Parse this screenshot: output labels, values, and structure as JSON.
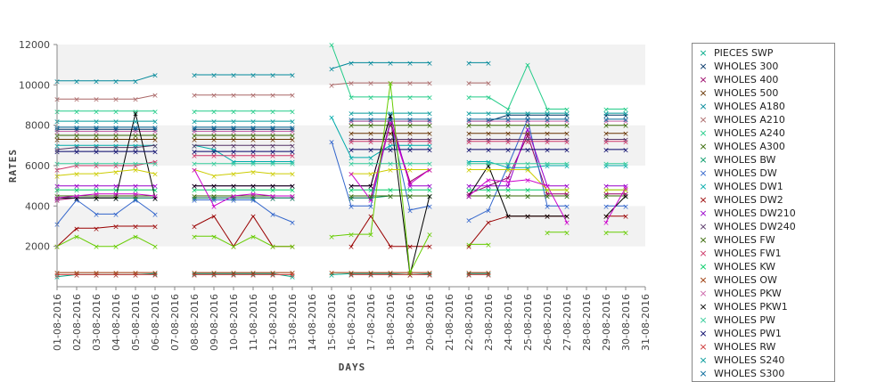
{
  "chart_data": {
    "type": "line",
    "title": "",
    "xlabel": "DAYS",
    "ylabel": "RATES",
    "ylim": [
      0,
      12000
    ],
    "yticks": [
      2000,
      4000,
      6000,
      8000,
      10000,
      12000
    ],
    "grid": "alternating horizontal bands",
    "legend_position": "right",
    "categories": [
      "01-08-2016",
      "02-08-2016",
      "03-08-2016",
      "04-08-2016",
      "05-08-2016",
      "06-08-2016",
      "07-08-2016",
      "08-08-2016",
      "09-08-2016",
      "10-08-2016",
      "11-08-2016",
      "12-08-2016",
      "13-08-2016",
      "14-08-2016",
      "15-08-2016",
      "16-08-2016",
      "17-08-2016",
      "18-08-2016",
      "19-08-2016",
      "20-08-2016",
      "21-08-2016",
      "22-08-2016",
      "23-08-2016",
      "24-08-2016",
      "25-08-2016",
      "26-08-2016",
      "27-08-2016",
      "28-08-2016",
      "29-08-2016",
      "30-08-2016",
      "31-08-2016"
    ],
    "series": [
      {
        "name": "PIECES SWP",
        "color": "#00aa88",
        "values": [
          500,
          600,
          600,
          600,
          600,
          650,
          null,
          650,
          650,
          650,
          650,
          650,
          500,
          null,
          600,
          650,
          650,
          650,
          600,
          650,
          null,
          650,
          650,
          null,
          null,
          null,
          null,
          null,
          null,
          null,
          null
        ]
      },
      {
        "name": "WHOLES 300",
        "color": "#003366",
        "values": [
          7800,
          7800,
          7800,
          7800,
          7800,
          7800,
          null,
          7800,
          7800,
          7800,
          7800,
          7800,
          7800,
          null,
          null,
          8200,
          8200,
          8200,
          8200,
          8200,
          null,
          8200,
          8200,
          8500,
          8500,
          8500,
          8500,
          null,
          8500,
          8500,
          null
        ]
      },
      {
        "name": "WHOLES 400",
        "color": "#990066",
        "values": [
          4300,
          4400,
          4400,
          4400,
          4400,
          4400,
          null,
          4400,
          4400,
          4400,
          4400,
          4400,
          4400,
          null,
          null,
          4400,
          4400,
          8200,
          5200,
          5800,
          null,
          4600,
          5000,
          5400,
          7500,
          4600,
          4600,
          null,
          4600,
          4600,
          null
        ]
      },
      {
        "name": "WHOLES 500",
        "color": "#663300",
        "values": [
          7300,
          7300,
          7300,
          7300,
          7300,
          7300,
          null,
          7300,
          7300,
          7300,
          7300,
          7300,
          7300,
          null,
          null,
          7600,
          7600,
          7600,
          7600,
          7600,
          null,
          7600,
          7600,
          7600,
          7600,
          7600,
          7600,
          null,
          7600,
          7600,
          null
        ]
      },
      {
        "name": "WHOLES A180",
        "color": "#008899",
        "values": [
          10200,
          10200,
          10200,
          10200,
          10200,
          10500,
          null,
          10500,
          10500,
          10500,
          10500,
          10500,
          10500,
          null,
          10800,
          11100,
          11100,
          11100,
          11100,
          11100,
          null,
          11100,
          11100,
          null,
          null,
          null,
          null,
          null,
          null,
          null,
          null
        ]
      },
      {
        "name": "WHOLES A210",
        "color": "#aa6666",
        "values": [
          9300,
          9300,
          9300,
          9300,
          9300,
          9500,
          null,
          9500,
          9500,
          9500,
          9500,
          9500,
          9500,
          null,
          10000,
          10100,
          10100,
          10100,
          10100,
          10100,
          null,
          10100,
          10100,
          null,
          null,
          null,
          null,
          null,
          null,
          null,
          null
        ]
      },
      {
        "name": "WHOLES A240",
        "color": "#22cc88",
        "values": [
          8700,
          8700,
          8700,
          8700,
          8700,
          8700,
          null,
          8700,
          8700,
          8700,
          8700,
          8700,
          8700,
          null,
          12000,
          9400,
          9400,
          9400,
          9400,
          9400,
          null,
          9400,
          9400,
          8800,
          11000,
          8800,
          8800,
          null,
          8800,
          8800,
          null
        ]
      },
      {
        "name": "WHOLES A300",
        "color": "#336600",
        "values": [
          7500,
          7500,
          7500,
          7500,
          7500,
          7500,
          null,
          7500,
          7500,
          7500,
          7500,
          7500,
          7500,
          null,
          null,
          8000,
          8000,
          8000,
          8000,
          8000,
          null,
          8000,
          8000,
          8000,
          8000,
          8000,
          8000,
          null,
          8000,
          8000,
          null
        ]
      },
      {
        "name": "WHOLES BW",
        "color": "#009966",
        "values": [
          4400,
          4400,
          4400,
          4400,
          4400,
          4400,
          null,
          4400,
          4400,
          4400,
          4400,
          4400,
          4400,
          null,
          null,
          4400,
          4400,
          4500,
          4500,
          4500,
          null,
          4500,
          4500,
          4500,
          4500,
          4500,
          4500,
          null,
          4500,
          4500,
          null
        ]
      },
      {
        "name": "WHOLES DW",
        "color": "#3366cc",
        "values": [
          3100,
          4300,
          3600,
          3600,
          4300,
          3600,
          null,
          4300,
          4300,
          4300,
          4300,
          3600,
          3200,
          null,
          7200,
          4000,
          4000,
          8200,
          3800,
          4000,
          null,
          3300,
          3800,
          6000,
          8300,
          4000,
          4000,
          null,
          4000,
          4000,
          null
        ]
      },
      {
        "name": "WHOLES DW1",
        "color": "#00aaaa",
        "values": [
          7000,
          7000,
          7000,
          7000,
          7000,
          7000,
          null,
          7000,
          6800,
          6200,
          6200,
          6200,
          6200,
          null,
          8400,
          6400,
          6400,
          7000,
          7000,
          7000,
          null,
          6200,
          6200,
          5900,
          5900,
          6000,
          6000,
          null,
          6000,
          6000,
          null
        ]
      },
      {
        "name": "WHOLES DW2",
        "color": "#990000",
        "values": [
          2000,
          2900,
          2900,
          3000,
          3000,
          3000,
          null,
          3000,
          3500,
          2000,
          3500,
          2000,
          2000,
          null,
          null,
          2000,
          3500,
          2000,
          2000,
          2000,
          null,
          2000,
          3200,
          3500,
          3500,
          3500,
          3500,
          null,
          3500,
          3500,
          null
        ]
      },
      {
        "name": "WHOLES DW210",
        "color": "#9900cc",
        "values": [
          5000,
          5000,
          5000,
          5000,
          5000,
          5000,
          null,
          5000,
          5000,
          5000,
          5000,
          5000,
          5000,
          null,
          null,
          5000,
          5000,
          8500,
          5000,
          5000,
          null,
          5000,
          5000,
          5000,
          7800,
          5000,
          5000,
          null,
          5000,
          5000,
          null
        ]
      },
      {
        "name": "WHOLES DW240",
        "color": "#553366",
        "values": [
          6800,
          6900,
          6900,
          6900,
          6900,
          7000,
          null,
          7000,
          7000,
          7000,
          7000,
          7000,
          7000,
          null,
          null,
          7300,
          7300,
          7300,
          7300,
          7300,
          null,
          7300,
          7300,
          7300,
          7300,
          7300,
          7300,
          null,
          7300,
          7300,
          null
        ]
      },
      {
        "name": "WHOLES FW",
        "color": "#336600",
        "values": [
          4500,
          4500,
          4500,
          4500,
          4500,
          4500,
          null,
          4500,
          4500,
          4500,
          4500,
          4500,
          4500,
          null,
          null,
          4500,
          4500,
          4500,
          4500,
          4500,
          null,
          4500,
          4500,
          4500,
          4500,
          4500,
          4500,
          null,
          4500,
          4500,
          null
        ]
      },
      {
        "name": "WHOLES FW1",
        "color": "#cc3366",
        "values": [
          5800,
          6000,
          6000,
          6000,
          6000,
          6200,
          null,
          6500,
          6500,
          6500,
          6500,
          6500,
          6500,
          null,
          null,
          7200,
          7200,
          7200,
          7200,
          7200,
          null,
          7200,
          7200,
          7200,
          7200,
          7200,
          7200,
          null,
          7200,
          7200,
          null
        ]
      },
      {
        "name": "WHOLES KW",
        "color": "#00cc66",
        "values": [
          4800,
          4800,
          4800,
          4800,
          4800,
          4800,
          null,
          4800,
          4800,
          4800,
          4800,
          4800,
          4800,
          null,
          null,
          4800,
          4800,
          4800,
          4800,
          4800,
          null,
          4800,
          4800,
          4800,
          4800,
          4800,
          4800,
          null,
          4800,
          4800,
          null
        ]
      },
      {
        "name": "WHOLES OW",
        "color": "#993300",
        "values": [
          700,
          700,
          700,
          700,
          700,
          700,
          null,
          700,
          700,
          700,
          700,
          700,
          700,
          null,
          700,
          700,
          700,
          700,
          700,
          700,
          null,
          700,
          700,
          null,
          null,
          null,
          null,
          null,
          null,
          null,
          null
        ]
      },
      {
        "name": "WHOLES PKW",
        "color": "#cc66aa",
        "values": [
          7700,
          7700,
          7700,
          7700,
          7700,
          7700,
          null,
          7700,
          7700,
          7700,
          7700,
          7700,
          7700,
          null,
          null,
          8200,
          8200,
          8200,
          8200,
          8200,
          null,
          8200,
          8200,
          8200,
          8200,
          8200,
          8200,
          null,
          8200,
          8200,
          null
        ]
      },
      {
        "name": "WHOLES PKW1",
        "color": "#000000",
        "values": [
          4400,
          4400,
          4400,
          4400,
          8600,
          4400,
          null,
          5000,
          5000,
          5000,
          5000,
          5000,
          5000,
          null,
          null,
          5000,
          5000,
          8500,
          600,
          4500,
          null,
          4500,
          6000,
          3500,
          3500,
          3500,
          3500,
          null,
          3500,
          4500,
          null
        ]
      },
      {
        "name": "WHOLES PW",
        "color": "#33cc99",
        "values": [
          6100,
          6100,
          6100,
          6100,
          6100,
          6100,
          null,
          6100,
          6100,
          6100,
          6100,
          6100,
          6100,
          null,
          null,
          6100,
          6100,
          6100,
          6100,
          6100,
          null,
          6100,
          6100,
          6100,
          6100,
          6100,
          6100,
          null,
          6100,
          6100,
          null
        ]
      },
      {
        "name": "WHOLES PW1",
        "color": "#000066",
        "values": [
          6700,
          6700,
          6700,
          6700,
          6700,
          6700,
          null,
          6700,
          6700,
          6700,
          6700,
          6700,
          6700,
          null,
          null,
          6800,
          6800,
          6800,
          6800,
          6800,
          null,
          6800,
          6800,
          6800,
          6800,
          6800,
          6800,
          null,
          6800,
          6800,
          null
        ]
      },
      {
        "name": "WHOLES RW",
        "color": "#cc3333",
        "values": [
          600,
          600,
          600,
          600,
          600,
          600,
          null,
          600,
          600,
          600,
          600,
          600,
          600,
          null,
          null,
          600,
          600,
          600,
          600,
          600,
          null,
          600,
          600,
          null,
          null,
          null,
          null,
          null,
          null,
          null,
          null
        ]
      },
      {
        "name": "WHOLES S240",
        "color": "#009999",
        "values": [
          8200,
          8200,
          8200,
          8200,
          8200,
          8200,
          null,
          8200,
          8200,
          8200,
          8200,
          8200,
          8200,
          null,
          null,
          8600,
          8600,
          8600,
          8600,
          8600,
          null,
          8600,
          8600,
          8600,
          8600,
          8600,
          8600,
          null,
          8600,
          8600,
          null
        ]
      },
      {
        "name": "WHOLES S300",
        "color": "#006699",
        "values": [
          7900,
          7900,
          7900,
          7900,
          7900,
          7900,
          null,
          7900,
          7900,
          7900,
          7900,
          7900,
          7900,
          null,
          null,
          8300,
          8300,
          8300,
          8300,
          8300,
          null,
          8300,
          8300,
          8300,
          8300,
          8300,
          8300,
          null,
          8300,
          8300,
          null
        ]
      },
      {
        "name": "",
        "color": "#cccc00",
        "values": [
          5500,
          5600,
          5600,
          5700,
          5800,
          5600,
          null,
          5800,
          5500,
          5600,
          5700,
          5600,
          5600,
          null,
          null,
          5600,
          5600,
          5800,
          5800,
          5800,
          null,
          5800,
          5800,
          5800,
          5800,
          4800,
          4800,
          null,
          4800,
          4800,
          null
        ]
      },
      {
        "name": "",
        "color": "#cc00cc",
        "values": [
          4400,
          4500,
          4600,
          4600,
          4600,
          4500,
          null,
          5800,
          4000,
          4500,
          4600,
          4500,
          4500,
          null,
          null,
          5600,
          4300,
          8100,
          5100,
          5800,
          null,
          4500,
          5300,
          5200,
          5300,
          5000,
          3200,
          null,
          3200,
          4900,
          null
        ]
      },
      {
        "name": "",
        "color": "#66cc00",
        "values": [
          2000,
          2500,
          2000,
          2000,
          2500,
          2000,
          null,
          2500,
          2500,
          2000,
          2500,
          2000,
          2000,
          null,
          2500,
          2600,
          2600,
          10100,
          700,
          2600,
          null,
          2100,
          2100,
          null,
          null,
          2700,
          2700,
          null,
          2700,
          2700,
          null
        ]
      }
    ]
  }
}
